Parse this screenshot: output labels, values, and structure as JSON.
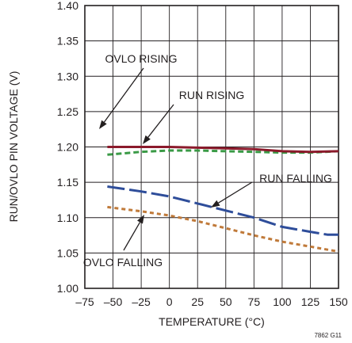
{
  "chart_data": {
    "type": "line",
    "xlabel": "TEMPERATURE (°C)",
    "ylabel": "RUN/OVLO PIN VOLTAGE (V)",
    "xlim": [
      -75,
      150
    ],
    "ylim": [
      1.0,
      1.4
    ],
    "grid": true,
    "xticks": [
      "–75",
      "–50",
      "–25",
      "0",
      "25",
      "50",
      "75",
      "100",
      "125",
      "150"
    ],
    "yticks": [
      "1.00",
      "1.05",
      "1.10",
      "1.15",
      "1.20",
      "1.25",
      "1.30",
      "1.35",
      "1.40"
    ],
    "series": [
      {
        "name": "RUN RISING",
        "color": "#8b1a2b",
        "dash": "solid",
        "x": [
          -55,
          -25,
          0,
          25,
          50,
          75,
          100,
          125,
          150
        ],
        "y": [
          1.2,
          1.2,
          1.2,
          1.199,
          1.198,
          1.197,
          1.194,
          1.193,
          1.194
        ]
      },
      {
        "name": "OVLO RISING",
        "color": "#3a9a46",
        "dash": "dashed",
        "x": [
          -55,
          -25,
          0,
          25,
          50,
          75,
          100,
          125,
          150
        ],
        "y": [
          1.189,
          1.193,
          1.195,
          1.195,
          1.194,
          1.193,
          1.192,
          1.192,
          1.194
        ]
      },
      {
        "name": "RUN FALLING",
        "color": "#2e4d9a",
        "dash": "long-dash",
        "x": [
          -55,
          -25,
          0,
          25,
          50,
          75,
          100,
          125,
          140,
          150
        ],
        "y": [
          1.144,
          1.137,
          1.13,
          1.12,
          1.11,
          1.1,
          1.087,
          1.08,
          1.076,
          1.076
        ]
      },
      {
        "name": "OVLO FALLING",
        "color": "#c07a3a",
        "dash": "dotted",
        "x": [
          -55,
          -25,
          0,
          25,
          50,
          75,
          100,
          125,
          150
        ],
        "y": [
          1.115,
          1.109,
          1.103,
          1.095,
          1.085,
          1.075,
          1.066,
          1.059,
          1.052
        ]
      }
    ],
    "annotations": [
      {
        "text": "OVLO RISING",
        "series": 1
      },
      {
        "text": "RUN RISING",
        "series": 0
      },
      {
        "text": "RUN FALLING",
        "series": 2
      },
      {
        "text": "OVLO FALLING",
        "series": 3
      }
    ],
    "figure_id": "7862 G11"
  }
}
